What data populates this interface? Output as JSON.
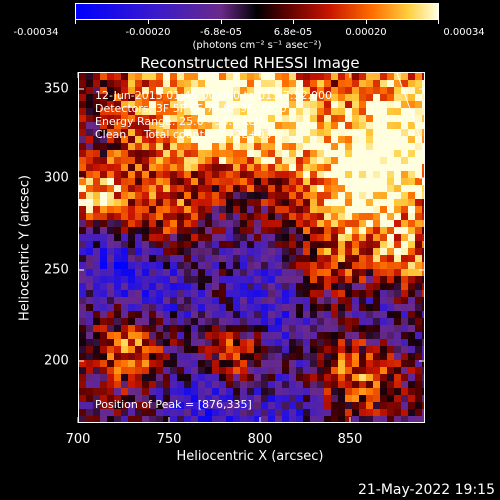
{
  "colorbar": {
    "tick_labels": [
      "-0.00034",
      "-0.00020",
      "-6.8e-05",
      "6.8e-05",
      "0.00020",
      "0.00034"
    ],
    "units": "(photons cm⁻² s⁻¹ asec⁻²)",
    "range": [
      -0.00034,
      0.00034
    ]
  },
  "image": {
    "title": "Reconstructed RHESSI Image",
    "info_lines": [
      "12-Jun-2015 01:45:00.000 to 01:47:52.000",
      "Detectors: 3F 5F 6F 7F 8F 9F, Att 0",
      "Energy Range: 25.0 - 50.0 keV",
      "Clean     Total counts: 4.72E+03"
    ],
    "peak_text": "Position of Peak = [876,335]"
  },
  "axes": {
    "xlabel": "Heliocentric X (arcsec)",
    "ylabel": "Heliocentric Y (arcsec)",
    "xticks": [
      "700",
      "750",
      "800",
      "850"
    ],
    "yticks": [
      "350",
      "300",
      "250",
      "200"
    ],
    "xlim": [
      700,
      890
    ],
    "ylim": [
      165,
      360
    ]
  },
  "footer": {
    "timestamp": "21-May-2022 19:15"
  },
  "colors": {
    "background": "#000000",
    "foreground": "#ffffff"
  }
}
